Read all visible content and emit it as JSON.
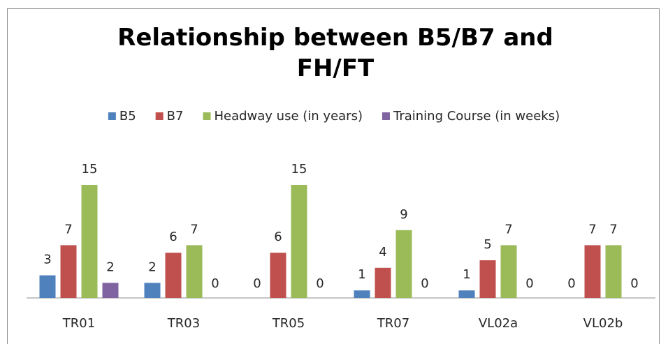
{
  "chart_data": {
    "type": "bar",
    "title": "Relationship between B5/B7 and FH/FT",
    "categories": [
      "TR01",
      "TR03",
      "TR05",
      "TR07",
      "VL02a",
      "VL02b"
    ],
    "series": [
      {
        "name": "B5",
        "color": "#4f81bd",
        "values": [
          3,
          2,
          0,
          1,
          1,
          0
        ]
      },
      {
        "name": "B7",
        "color": "#c0504d",
        "values": [
          7,
          6,
          6,
          4,
          5,
          7
        ]
      },
      {
        "name": "Headway use (in years)",
        "color": "#9bbb59",
        "values": [
          15,
          7,
          15,
          9,
          7,
          7
        ]
      },
      {
        "name": "Training Course (in weeks)",
        "color": "#8064a2",
        "values": [
          2,
          0,
          0,
          0,
          0,
          0
        ]
      }
    ],
    "legend": "top"
  }
}
